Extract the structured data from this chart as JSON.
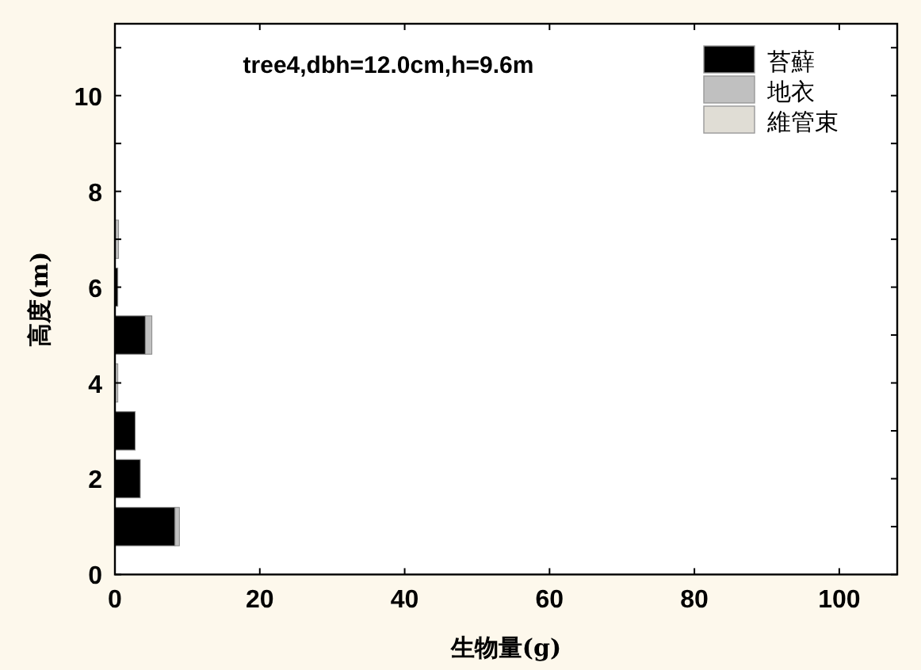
{
  "chart_data": {
    "type": "bar",
    "orientation": "horizontal",
    "stacked": true,
    "title": "tree4,dbh=12.0cm,h=9.6m",
    "xlabel": "生物量(g)",
    "ylabel": "高度(m)",
    "x": [
      1,
      2,
      3,
      4,
      5,
      6,
      7,
      8
    ],
    "series": [
      {
        "name": "苔蘚",
        "color": "#000000",
        "values": [
          8.3,
          3.5,
          2.8,
          0,
          4.2,
          0.4,
          0,
          0
        ]
      },
      {
        "name": "地衣",
        "color": "#c0c0c0",
        "values": [
          0.6,
          0,
          0,
          0.4,
          0.9,
          0,
          0.5,
          null
        ]
      },
      {
        "name": "維管束",
        "color": "#e0ddd5",
        "values": [
          0,
          0,
          0,
          0,
          0,
          0,
          0,
          0
        ]
      }
    ],
    "xlim": [
      0,
      108
    ],
    "xticks": [
      0,
      20,
      40,
      60,
      80,
      100
    ],
    "ylim": [
      0,
      11.5
    ],
    "yticks": [
      0,
      {
        "value": 1,
        "label": null
      },
      2,
      {
        "value": 3,
        "label": null
      },
      4,
      {
        "value": 5,
        "label": null
      },
      6,
      {
        "value": 7,
        "label": null
      },
      8,
      {
        "value": 9,
        "label": null
      },
      10,
      {
        "value": 11,
        "label": null
      }
    ],
    "grid": false,
    "legend": "top right"
  }
}
